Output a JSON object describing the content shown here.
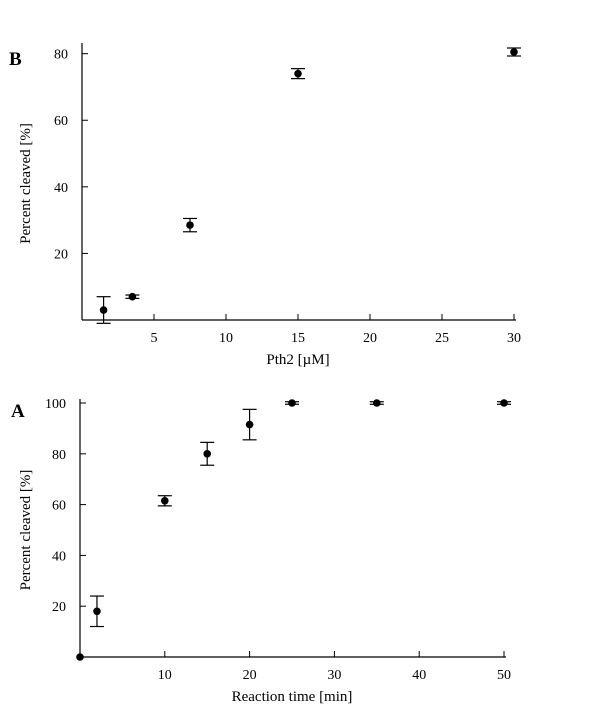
{
  "chart_data": [
    {
      "type": "scatter",
      "panel_label": "B",
      "xlabel": "Pth2 [µM]",
      "ylabel": "Percent cleaved [%]",
      "xlim": [
        0,
        30
      ],
      "ylim": [
        0,
        82
      ],
      "xticks": [
        5,
        10,
        15,
        20,
        25,
        30
      ],
      "yticks": [
        20,
        40,
        60,
        80
      ],
      "grid": false,
      "points": [
        {
          "x": 1.5,
          "y": 3,
          "err": 4
        },
        {
          "x": 3.5,
          "y": 7,
          "err": 0.5
        },
        {
          "x": 7.5,
          "y": 28.5,
          "err": 2
        },
        {
          "x": 15,
          "y": 74,
          "err": 1.5
        },
        {
          "x": 30,
          "y": 80.5,
          "err": 1.2
        }
      ]
    },
    {
      "type": "scatter",
      "panel_label": "A",
      "xlabel": "Reaction time [min]",
      "ylabel": "Percent cleaved [%]",
      "xlim": [
        0,
        50
      ],
      "ylim": [
        0,
        100
      ],
      "xticks": [
        10,
        20,
        30,
        40,
        50
      ],
      "yticks": [
        20,
        40,
        60,
        80,
        100
      ],
      "grid": false,
      "points": [
        {
          "x": 0,
          "y": 0,
          "err": 0
        },
        {
          "x": 2,
          "y": 18,
          "err": 6
        },
        {
          "x": 10,
          "y": 61.5,
          "err": 2
        },
        {
          "x": 15,
          "y": 80,
          "err": 4.5
        },
        {
          "x": 20,
          "y": 91.5,
          "err": 6
        },
        {
          "x": 25,
          "y": 100,
          "err": 0.5
        },
        {
          "x": 35,
          "y": 100,
          "err": 0.5
        },
        {
          "x": 50,
          "y": 100,
          "err": 0.5
        }
      ]
    }
  ]
}
